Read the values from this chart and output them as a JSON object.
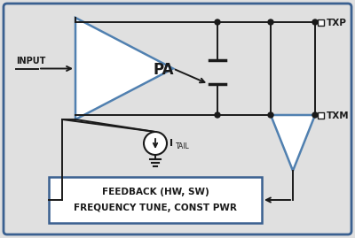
{
  "bg_color": "#e0e0e0",
  "border_color": "#3a6090",
  "line_color": "#1a1a1a",
  "pa_fill": "#ffffff",
  "pa_border": "#5080b0",
  "feedback_box_bg": "#ffffff",
  "feedback_box_border": "#3a6090",
  "text_color": "#1a1a1a",
  "txp_label": "TXP",
  "txm_label": "TXM",
  "input_label": "INPUT",
  "pa_label": "PA",
  "itail_label": "I",
  "itail_sub": "TAIL",
  "feedback_line1": "FEEDBACK (HW, SW)",
  "feedback_line2": "FREQUENCY TUNE, CONST PWR",
  "figw": 4.0,
  "figh": 2.69,
  "dpi": 100
}
